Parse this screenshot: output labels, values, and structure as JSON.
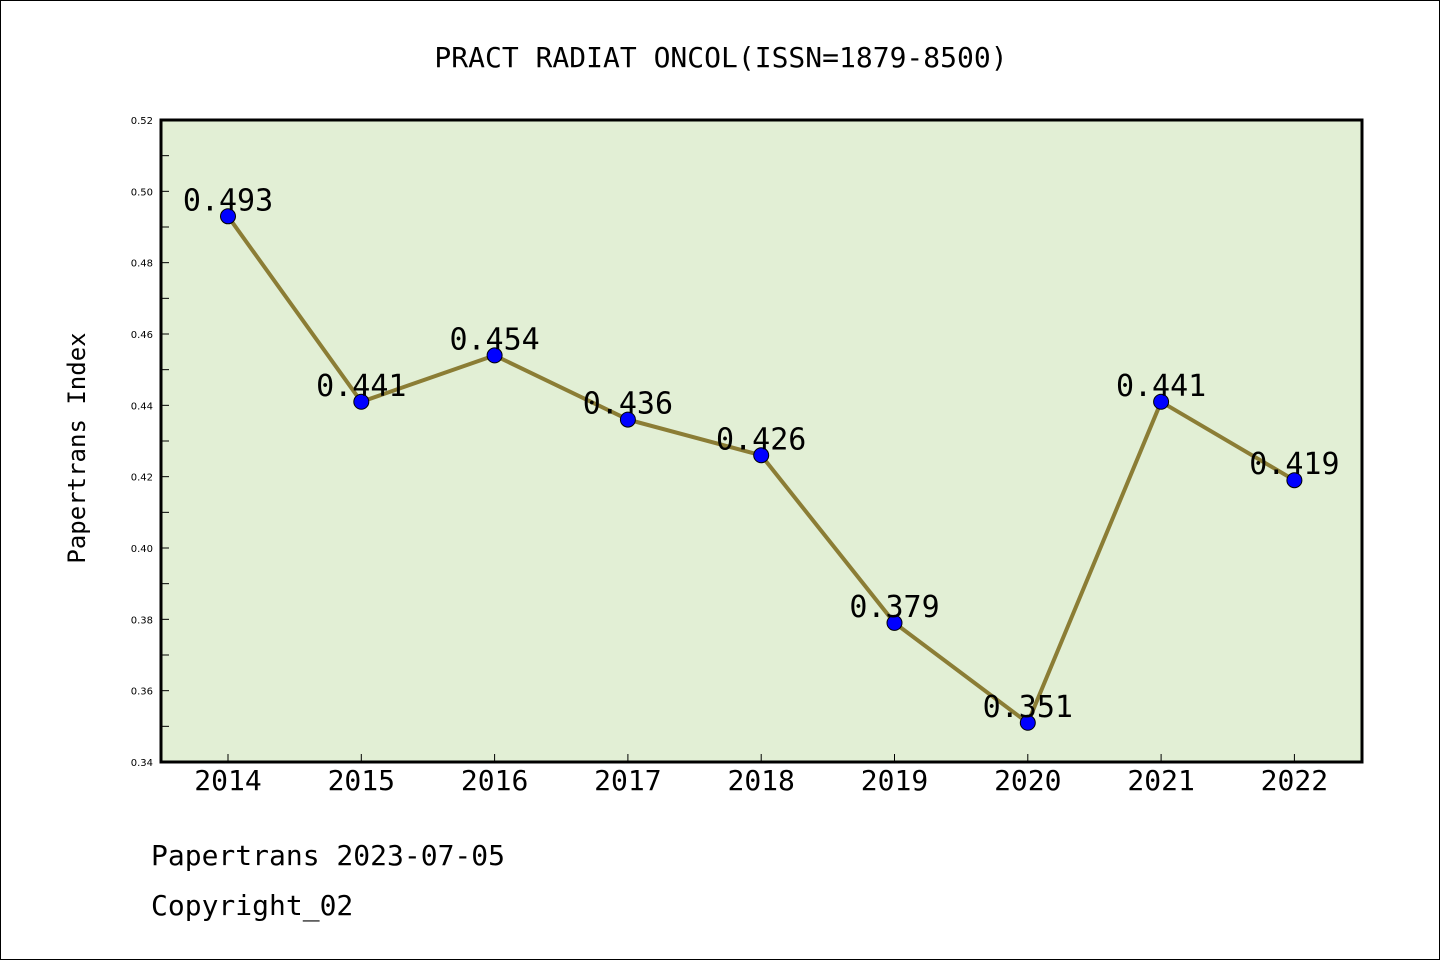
{
  "chart_data": {
    "type": "line",
    "title": "PRACT RADIAT ONCOL(ISSN=1879-8500)",
    "ylabel": "Papertrans Index",
    "xlabel": "",
    "categories": [
      "2014",
      "2015",
      "2016",
      "2017",
      "2018",
      "2019",
      "2020",
      "2021",
      "2022"
    ],
    "series": [
      {
        "values": [
          0.493,
          0.441,
          0.454,
          0.436,
          0.426,
          0.379,
          0.351,
          0.441,
          0.419
        ],
        "labels": [
          "0.493",
          "0.441",
          "0.454",
          "0.436",
          "0.426",
          "0.379",
          "0.351",
          "0.441",
          "0.419"
        ]
      }
    ],
    "ylim": [
      0.34,
      0.52
    ],
    "yticks": [
      "0.34",
      "0.36",
      "0.38",
      "0.40",
      "0.42",
      "0.44",
      "0.46",
      "0.48",
      "0.50",
      "0.52"
    ],
    "grid": false,
    "colors": {
      "plot_background": "#e2efd5",
      "line": "#8b7d35",
      "marker": "#0000ff",
      "axes": "#000000"
    }
  },
  "footer": {
    "line1": "Papertrans 2023-07-05",
    "line2": "Copyright_02"
  }
}
